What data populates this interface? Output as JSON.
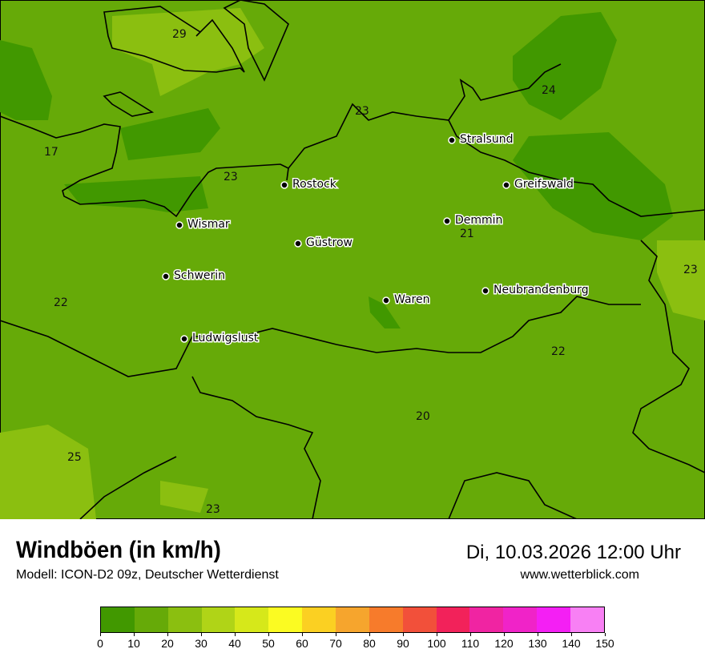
{
  "header": {
    "title": "Windböen (in km/h)",
    "subtitle": "Modell: ICON-D2 09z, Deutscher Wetterdienst",
    "datetime": "Di, 10.03.2026 12:00 Uhr",
    "website": "www.wetterblick.com"
  },
  "map": {
    "cities": [
      {
        "name": "Stralsund"
      },
      {
        "name": "Rostock"
      },
      {
        "name": "Greifswald"
      },
      {
        "name": "Wismar"
      },
      {
        "name": "Demmin"
      },
      {
        "name": "Güstrow"
      },
      {
        "name": "Schwerin"
      },
      {
        "name": "Waren"
      },
      {
        "name": "Neubrandenburg"
      },
      {
        "name": "Ludwigslust"
      }
    ],
    "value_labels": [
      "29",
      "23",
      "24",
      "17",
      "23",
      "21",
      "23",
      "22",
      "22",
      "20",
      "25",
      "23"
    ]
  },
  "legend": {
    "unit": "km/h",
    "ticks": [
      "0",
      "10",
      "20",
      "30",
      "40",
      "50",
      "60",
      "70",
      "80",
      "90",
      "100",
      "110",
      "120",
      "130",
      "140",
      "150"
    ],
    "colors": [
      "#419800",
      "#66aa08",
      "#8bbf10",
      "#b0d417",
      "#d6e81a",
      "#fbfb22",
      "#fbd022",
      "#f6a52d",
      "#f77b2b",
      "#f2503a",
      "#f2225a",
      "#f024a2",
      "#f023c8",
      "#f41ff4",
      "#f880f4"
    ]
  }
}
